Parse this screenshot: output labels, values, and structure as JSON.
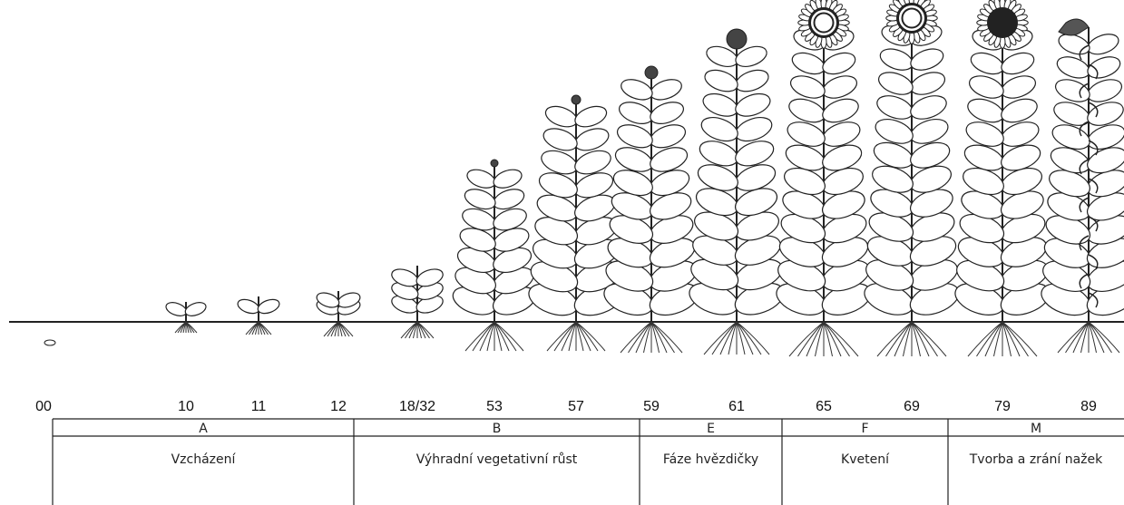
{
  "stages": [
    {
      "code": "00"
    },
    {
      "code": "10"
    },
    {
      "code": "11"
    },
    {
      "code": "12"
    },
    {
      "code": "18/32"
    },
    {
      "code": "53"
    },
    {
      "code": "57"
    },
    {
      "code": "59"
    },
    {
      "code": "61"
    },
    {
      "code": "65"
    },
    {
      "code": "69"
    },
    {
      "code": "79"
    },
    {
      "code": "89"
    }
  ],
  "phases": [
    {
      "letter": "A",
      "name": "Vzcházení"
    },
    {
      "letter": "B",
      "name": "Výhradní vegetativní růst"
    },
    {
      "letter": "E",
      "name": "Fáze hvězdičky"
    },
    {
      "letter": "F",
      "name": "Kvetení"
    },
    {
      "letter": "M",
      "name": "Tvorba a zrání nažek"
    }
  ]
}
